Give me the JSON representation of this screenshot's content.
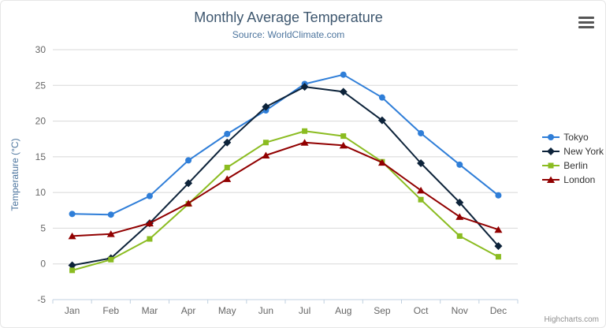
{
  "chart": {
    "credits_label": "Highcharts.com",
    "menu_icon": "hamburger-menu-icon"
  },
  "chart_data": {
    "type": "line",
    "title": "Monthly Average Temperature",
    "subtitle": "Source: WorldClimate.com",
    "categories": [
      "Jan",
      "Feb",
      "Mar",
      "Apr",
      "May",
      "Jun",
      "Jul",
      "Aug",
      "Sep",
      "Oct",
      "Nov",
      "Dec"
    ],
    "series": [
      {
        "name": "Tokyo",
        "color": "#2f7ed8",
        "marker": "circle",
        "values": [
          7.0,
          6.9,
          9.5,
          14.5,
          18.2,
          21.5,
          25.2,
          26.5,
          23.3,
          18.3,
          13.9,
          9.6
        ]
      },
      {
        "name": "New York",
        "color": "#0d233a",
        "marker": "diamond",
        "values": [
          -0.2,
          0.8,
          5.7,
          11.3,
          17.0,
          22.0,
          24.8,
          24.1,
          20.1,
          14.1,
          8.6,
          2.5
        ]
      },
      {
        "name": "Berlin",
        "color": "#8bbc21",
        "marker": "square",
        "values": [
          -0.9,
          0.6,
          3.5,
          8.4,
          13.5,
          17.0,
          18.6,
          17.9,
          14.3,
          9.0,
          3.9,
          1.0
        ]
      },
      {
        "name": "London",
        "color": "#910000",
        "marker": "triangle",
        "values": [
          3.9,
          4.2,
          5.7,
          8.5,
          11.9,
          15.2,
          17.0,
          16.6,
          14.2,
          10.3,
          6.6,
          4.8
        ]
      }
    ],
    "xlabel": "",
    "ylabel": "Temperature (°C)",
    "ylim": [
      -5,
      30
    ],
    "ytick_interval": 5,
    "grid": true,
    "legend_position": "right",
    "colors": {
      "grid_line": "#d8d8d8",
      "axis_line": "#c0d0e0",
      "axis_label": "#666666",
      "axis_title": "#4d759e",
      "title": "#3E576F",
      "subtitle": "#4d759e",
      "legend_text": "#333333"
    }
  }
}
